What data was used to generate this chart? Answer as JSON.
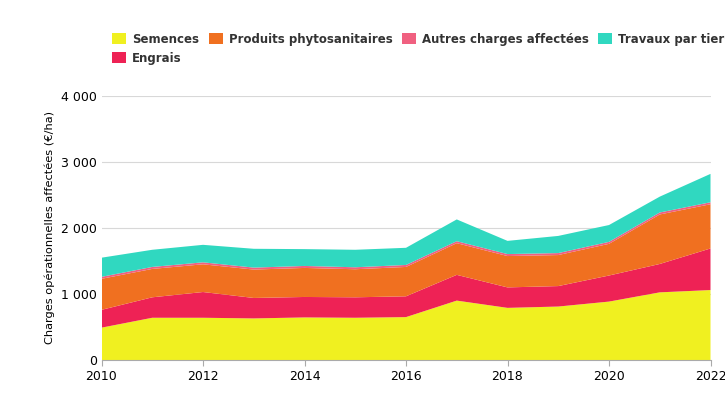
{
  "years": [
    2010,
    2011,
    2012,
    2013,
    2014,
    2015,
    2016,
    2017,
    2018,
    2019,
    2020,
    2021,
    2022
  ],
  "semences": [
    490,
    640,
    640,
    630,
    645,
    640,
    650,
    900,
    790,
    810,
    885,
    1025,
    1060
  ],
  "engrais": [
    270,
    310,
    390,
    310,
    310,
    310,
    315,
    390,
    310,
    310,
    395,
    430,
    630
  ],
  "phyto": [
    470,
    430,
    420,
    430,
    440,
    425,
    445,
    480,
    475,
    470,
    480,
    750,
    670
  ],
  "autres": [
    30,
    30,
    30,
    30,
    30,
    30,
    30,
    30,
    30,
    30,
    30,
    30,
    30
  ],
  "travaux": [
    290,
    260,
    265,
    285,
    255,
    265,
    260,
    330,
    200,
    260,
    255,
    240,
    430
  ],
  "color_semences": "#f0f020",
  "color_engrais": "#ee2255",
  "color_phyto": "#f07020",
  "color_autres": "#f06080",
  "color_travaux": "#30d8c0",
  "label_semences": "Semences",
  "label_engrais": "Engrais",
  "label_phyto": "Produits phytosanitaires",
  "label_autres": "Autres charges affectées",
  "label_travaux": "Travaux par tiers",
  "ylabel": "Charges opérationnelles affectées (€/ha)",
  "ylim": [
    0,
    4000
  ],
  "yticks": [
    0,
    1000,
    2000,
    3000,
    4000
  ],
  "ytick_labels": [
    "0",
    "1 000",
    "2 000",
    "3 000",
    "4 000"
  ],
  "xticks": [
    2010,
    2012,
    2014,
    2016,
    2018,
    2020,
    2022
  ],
  "background_color": "#ffffff",
  "grid_color": "#d8d8d8"
}
